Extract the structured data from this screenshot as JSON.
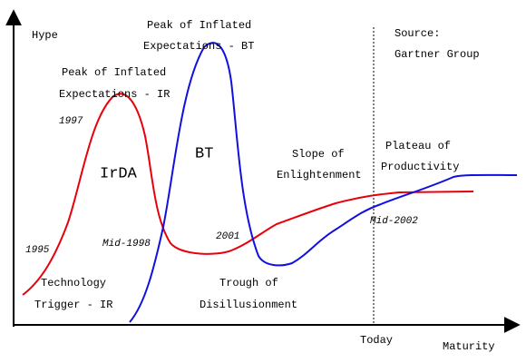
{
  "axes": {
    "y_label": "Hype",
    "x_label": "Maturity",
    "today": "Today"
  },
  "source": [
    "Source:",
    "Gartner Group"
  ],
  "labels": {
    "peak_ir": [
      "Peak of Inflated",
      "Expectations - IR"
    ],
    "peak_bt": [
      "Peak of Inflated",
      "Expectations - BT"
    ],
    "irda": "IrDA",
    "bt": "BT",
    "slope": [
      "Slope of",
      "Enlightenment"
    ],
    "plateau": [
      "Plateau of",
      "Productivity"
    ],
    "trigger": [
      "Technology",
      "Trigger - IR"
    ],
    "trough": [
      "Trough of",
      "Disillusionment"
    ]
  },
  "dates": {
    "y1995": "1995",
    "y1997": "1997",
    "mid1998": "Mid-1998",
    "y2001": "2001",
    "mid2002": "Mid-2002"
  }
}
